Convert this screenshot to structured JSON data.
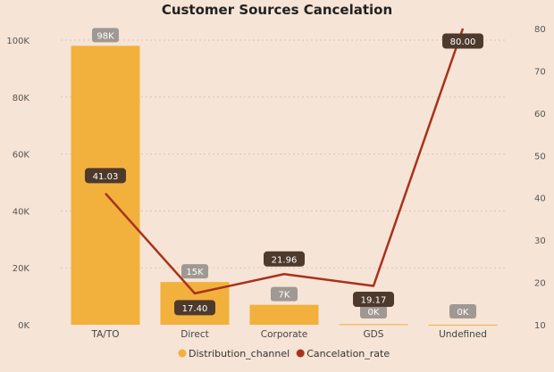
{
  "chart_data": {
    "type": "bar+line",
    "title": "Customer Sources Cancelation",
    "categories": [
      "TA/TO",
      "Direct",
      "Corporate",
      "GDS",
      "Undefined"
    ],
    "series": [
      {
        "name": "Distribution_channel",
        "kind": "bar",
        "axis": "left",
        "values": [
          98000,
          15000,
          7000,
          200,
          10
        ],
        "labels": [
          "98K",
          "15K",
          "7K",
          "0K",
          "0K"
        ],
        "color": "#f2b03d"
      },
      {
        "name": "Cancelation_rate",
        "kind": "line",
        "axis": "right",
        "values": [
          41.03,
          17.4,
          21.96,
          19.17,
          80.0
        ],
        "labels": [
          "41.03",
          "17.40",
          "21.96",
          "19.17",
          "80.00"
        ],
        "color": "#a8321b"
      }
    ],
    "y_left": {
      "ylim": [
        0,
        100000
      ],
      "ticks": [
        0,
        20000,
        40000,
        60000,
        80000,
        100000
      ],
      "tick_labels": [
        "0K",
        "20K",
        "40K",
        "60K",
        "80K",
        "100K"
      ]
    },
    "y_right": {
      "ylim": [
        10,
        80
      ],
      "ticks": [
        10,
        20,
        30,
        40,
        50,
        60,
        70,
        80
      ],
      "tick_labels": [
        "10",
        "20",
        "30",
        "40",
        "50",
        "60",
        "70",
        "80"
      ]
    },
    "grid": true,
    "legend": "bottom-center"
  }
}
